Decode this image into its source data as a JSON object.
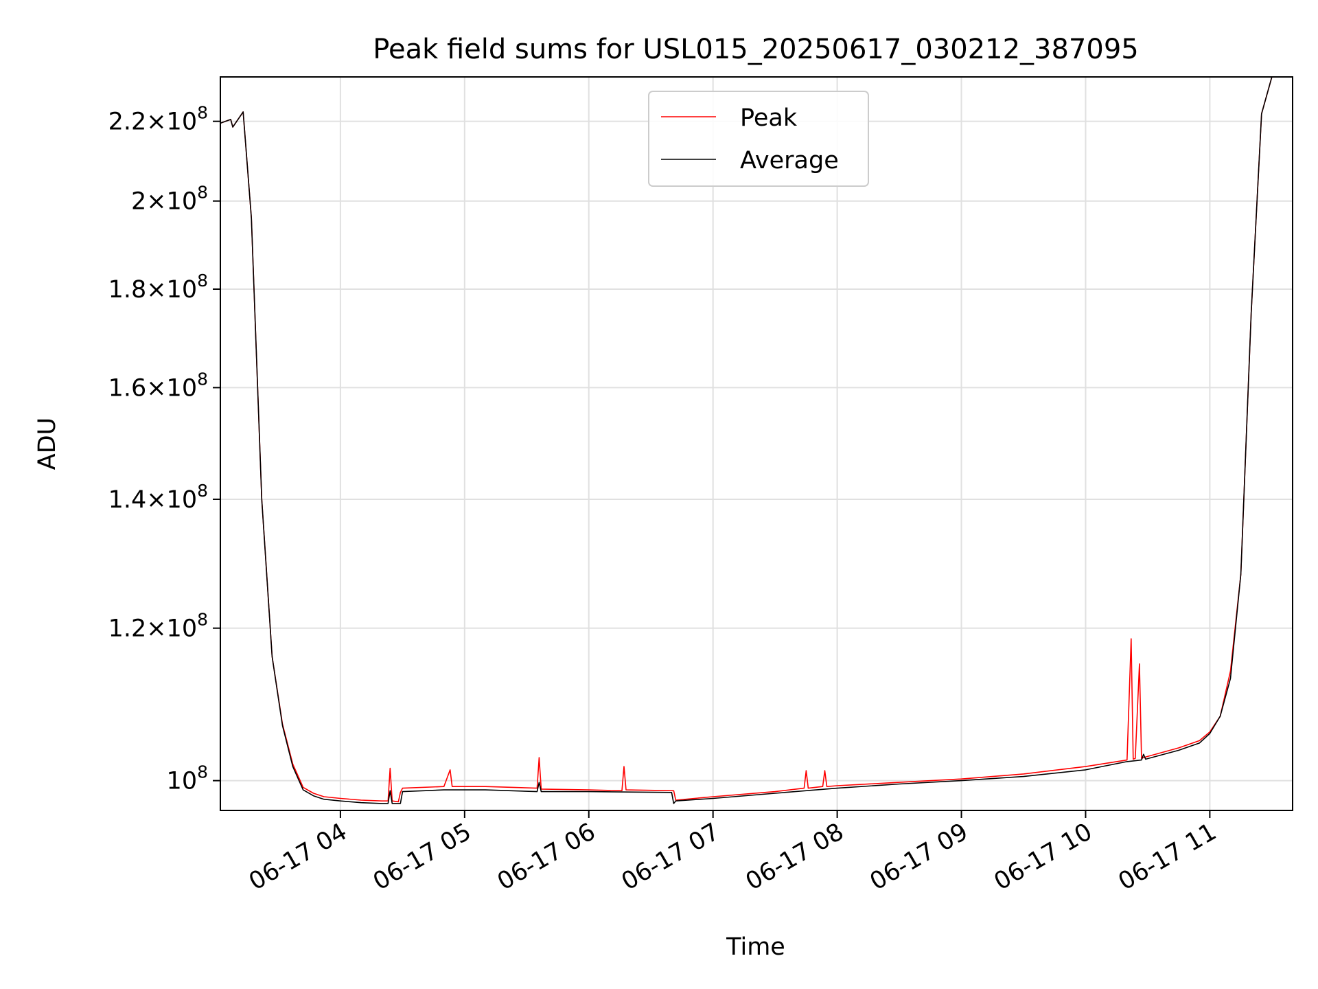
{
  "chart_data": {
    "type": "line",
    "title": "Peak field sums for USL015_20250617_030212_387095",
    "xlabel": "Time",
    "ylabel": "ADU",
    "x_ticks": [
      "06-17 04",
      "06-17 05",
      "06-17 06",
      "06-17 07",
      "06-17 08",
      "06-17 09",
      "06-17 10",
      "06-17 11"
    ],
    "y_ticks": [
      {
        "value": 100000000,
        "mantissa": "",
        "exponent": "8"
      },
      {
        "value": 120000000,
        "mantissa": "1.2",
        "exponent": "8"
      },
      {
        "value": 140000000,
        "mantissa": "1.4",
        "exponent": "8"
      },
      {
        "value": 160000000,
        "mantissa": "1.6",
        "exponent": "8"
      },
      {
        "value": 180000000,
        "mantissa": "1.8",
        "exponent": "8"
      },
      {
        "value": 200000000,
        "mantissa": "2",
        "exponent": "8"
      },
      {
        "value": 220000000,
        "mantissa": "2.2",
        "exponent": "8"
      }
    ],
    "x_range": [
      "2025-06-17 03:02",
      "2025-06-17 11:40"
    ],
    "y_range": [
      96500000,
      232000000
    ],
    "y_scale": "log",
    "grid": true,
    "legend_position": "upper center",
    "series": [
      {
        "name": "Peak",
        "color": "#ff0000",
        "x": [
          "2025-06-17 03:02",
          "2025-06-17 03:07",
          "2025-06-17 03:08",
          "2025-06-17 03:13",
          "2025-06-17 03:17",
          "2025-06-17 03:22",
          "2025-06-17 03:24",
          "2025-06-17 03:27",
          "2025-06-17 03:32",
          "2025-06-17 03:37",
          "2025-06-17 03:42",
          "2025-06-17 03:47",
          "2025-06-17 03:52",
          "2025-06-17 04:00",
          "2025-06-17 04:10",
          "2025-06-17 04:20",
          "2025-06-17 04:23",
          "2025-06-17 04:24",
          "2025-06-17 04:25",
          "2025-06-17 04:28",
          "2025-06-17 04:29",
          "2025-06-17 04:30",
          "2025-06-17 04:50",
          "2025-06-17 04:53",
          "2025-06-17 04:54",
          "2025-06-17 05:10",
          "2025-06-17 05:35",
          "2025-06-17 05:36",
          "2025-06-17 05:37",
          "2025-06-17 06:00",
          "2025-06-17 06:16",
          "2025-06-17 06:17",
          "2025-06-17 06:18",
          "2025-06-17 06:41",
          "2025-06-17 06:42",
          "2025-06-17 07:00",
          "2025-06-17 07:30",
          "2025-06-17 07:44",
          "2025-06-17 07:45",
          "2025-06-17 07:46",
          "2025-06-17 07:53",
          "2025-06-17 07:54",
          "2025-06-17 07:55",
          "2025-06-17 08:00",
          "2025-06-17 08:30",
          "2025-06-17 09:00",
          "2025-06-17 09:30",
          "2025-06-17 10:00",
          "2025-06-17 10:20",
          "2025-06-17 10:22",
          "2025-06-17 10:23",
          "2025-06-17 10:24",
          "2025-06-17 10:26",
          "2025-06-17 10:27",
          "2025-06-17 10:28",
          "2025-06-17 10:45",
          "2025-06-17 10:55",
          "2025-06-17 11:00",
          "2025-06-17 11:05",
          "2025-06-17 11:10",
          "2025-06-17 11:15",
          "2025-06-17 11:20",
          "2025-06-17 11:25",
          "2025-06-17 11:30",
          "2025-06-17 11:40"
        ],
        "y": [
          219500000,
          220500000,
          218500000,
          222500000,
          196000000,
          140000000,
          130000000,
          116000000,
          107000000,
          102000000,
          99200000,
          98500000,
          98100000,
          97900000,
          97700000,
          97600000,
          97600000,
          101500000,
          97600000,
          97500000,
          98600000,
          99100000,
          99300000,
          101300000,
          99300000,
          99300000,
          99100000,
          102800000,
          99000000,
          98900000,
          98800000,
          101700000,
          98900000,
          98800000,
          97700000,
          98100000,
          98700000,
          99100000,
          101200000,
          99100000,
          99300000,
          101200000,
          99300000,
          99400000,
          99800000,
          100200000,
          100800000,
          101700000,
          102500000,
          118500000,
          102600000,
          102700000,
          115000000,
          102700000,
          102800000,
          104000000,
          104900000,
          106000000,
          108000000,
          114000000,
          128000000,
          175000000,
          222000000,
          232000000,
          232000000
        ]
      },
      {
        "name": "Average",
        "color": "#000000",
        "x": [
          "2025-06-17 03:02",
          "2025-06-17 03:07",
          "2025-06-17 03:08",
          "2025-06-17 03:13",
          "2025-06-17 03:17",
          "2025-06-17 03:22",
          "2025-06-17 03:27",
          "2025-06-17 03:32",
          "2025-06-17 03:37",
          "2025-06-17 03:42",
          "2025-06-17 03:47",
          "2025-06-17 03:52",
          "2025-06-17 04:00",
          "2025-06-17 04:10",
          "2025-06-17 04:20",
          "2025-06-17 04:23",
          "2025-06-17 04:24",
          "2025-06-17 04:25",
          "2025-06-17 04:29",
          "2025-06-17 04:30",
          "2025-06-17 04:50",
          "2025-06-17 05:10",
          "2025-06-17 05:35",
          "2025-06-17 05:36",
          "2025-06-17 05:37",
          "2025-06-17 06:00",
          "2025-06-17 06:40",
          "2025-06-17 06:41",
          "2025-06-17 06:42",
          "2025-06-17 07:00",
          "2025-06-17 07:30",
          "2025-06-17 08:00",
          "2025-06-17 08:30",
          "2025-06-17 09:00",
          "2025-06-17 09:30",
          "2025-06-17 10:00",
          "2025-06-17 10:20",
          "2025-06-17 10:27",
          "2025-06-17 10:28",
          "2025-06-17 10:29",
          "2025-06-17 10:45",
          "2025-06-17 10:55",
          "2025-06-17 11:00",
          "2025-06-17 11:05",
          "2025-06-17 11:10",
          "2025-06-17 11:15",
          "2025-06-17 11:20",
          "2025-06-17 11:25",
          "2025-06-17 11:30",
          "2025-06-17 11:40"
        ],
        "y": [
          219500000,
          220500000,
          218500000,
          222500000,
          196000000,
          140000000,
          116000000,
          106800000,
          101700000,
          98900000,
          98200000,
          97800000,
          97600000,
          97400000,
          97300000,
          97300000,
          98800000,
          97300000,
          97300000,
          98700000,
          98900000,
          98900000,
          98700000,
          99800000,
          98700000,
          98700000,
          98600000,
          97300000,
          97600000,
          97900000,
          98500000,
          99100000,
          99600000,
          100000000,
          100500000,
          101300000,
          102300000,
          102500000,
          103200000,
          102600000,
          103700000,
          104600000,
          105800000,
          108000000,
          113000000,
          128000000,
          175000000,
          222000000,
          232000000,
          232000000
        ]
      }
    ]
  }
}
